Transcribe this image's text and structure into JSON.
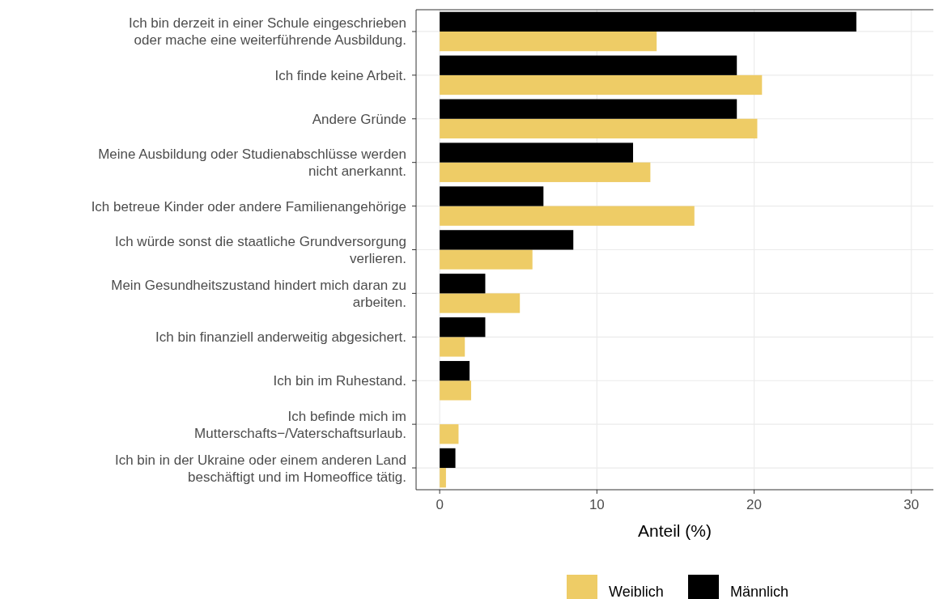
{
  "chart_data": {
    "type": "bar",
    "orientation": "horizontal",
    "xlabel": "Anteil (%)",
    "categories": [
      "Ich bin derzeit in einer Schule eingeschrieben\noder mache eine weiterführende Ausbildung.",
      "Ich finde keine Arbeit.",
      "Andere Gründe",
      "Meine Ausbildung oder Studienabschlüsse werden\nnicht anerkannt.",
      "Ich betreue Kinder oder andere Familienangehörige",
      "Ich würde sonst die staatliche Grundversorgung\nverlieren.",
      "Mein Gesundheitszustand hindert mich daran zu\narbeiten.",
      "Ich bin finanziell anderweitig abgesichert.",
      "Ich bin im Ruhestand.",
      "Ich befinde mich im\nMutterschafts−/Vaterschaftsurlaub.",
      "Ich bin in der Ukraine oder einem anderen Land\nbeschäftigt und im Homeoffice tätig."
    ],
    "series": [
      {
        "name": "Weiblich",
        "color": "#eecc66",
        "values": [
          13.8,
          20.5,
          20.2,
          13.4,
          16.2,
          5.9,
          5.1,
          1.6,
          2.0,
          1.2,
          0.4
        ]
      },
      {
        "name": "Männlich",
        "color": "#000000",
        "values": [
          26.5,
          18.9,
          18.9,
          12.3,
          6.6,
          8.5,
          2.9,
          2.9,
          1.9,
          null,
          1.0
        ]
      }
    ],
    "xlim": [
      -1.5,
      31.4
    ],
    "xticks": [
      0,
      10,
      20,
      30
    ],
    "grid": true,
    "legend": "bottom"
  }
}
